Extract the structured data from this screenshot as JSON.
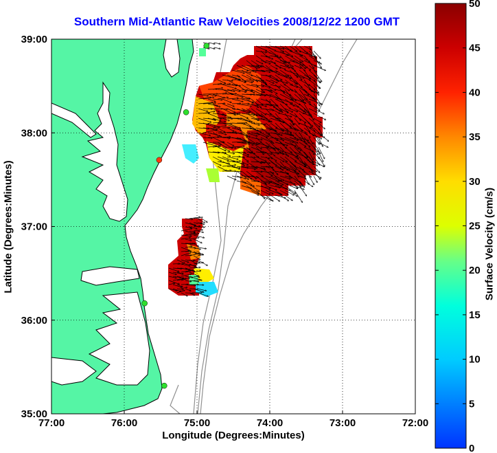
{
  "title": "Southern Mid-Atlantic Raw Velocities 2008/12/22 1200 GMT",
  "xlabel": "Longitude (Degrees:Minutes)",
  "ylabel": "Latitude (Degrees:Minutes)",
  "colorbar": {
    "label": "Surface Velocity (cm/s)",
    "range": [
      0,
      50
    ],
    "ticks": [
      "0",
      "5",
      "10",
      "15",
      "20",
      "25",
      "30",
      "35",
      "40",
      "45",
      "50"
    ]
  },
  "map": {
    "lon_range": [
      -77,
      -72
    ],
    "lat_range": [
      35,
      39
    ],
    "x_ticks": [
      {
        "value": -77,
        "label": "77:00"
      },
      {
        "value": -76,
        "label": "76:00"
      },
      {
        "value": -75,
        "label": "75:00"
      },
      {
        "value": -74,
        "label": "74:00"
      },
      {
        "value": -73,
        "label": "73:00"
      },
      {
        "value": -72,
        "label": "72:00"
      }
    ],
    "y_ticks": [
      {
        "value": 35,
        "label": "35:00"
      },
      {
        "value": 36,
        "label": "36:00"
      },
      {
        "value": 37,
        "label": "37:00"
      },
      {
        "value": 38,
        "label": "38:00"
      },
      {
        "value": 39,
        "label": "39:00"
      }
    ],
    "grid": "dotted",
    "colors": {
      "land": "#55f5a5",
      "water": "#ffffff",
      "bathymetry": "#8f8f8f",
      "coastline": "#000000",
      "station_green": "#2ee02e",
      "station_red": "#ff3a10"
    },
    "stations": [
      {
        "lon": -74.87,
        "lat": 38.93,
        "color": "green"
      },
      {
        "lon": -75.15,
        "lat": 38.22,
        "color": "green"
      },
      {
        "lon": -75.52,
        "lat": 37.71,
        "color": "red"
      },
      {
        "lon": -75.72,
        "lat": 36.18,
        "color": "green"
      },
      {
        "lon": -75.45,
        "lat": 35.3,
        "color": "green"
      }
    ]
  }
}
